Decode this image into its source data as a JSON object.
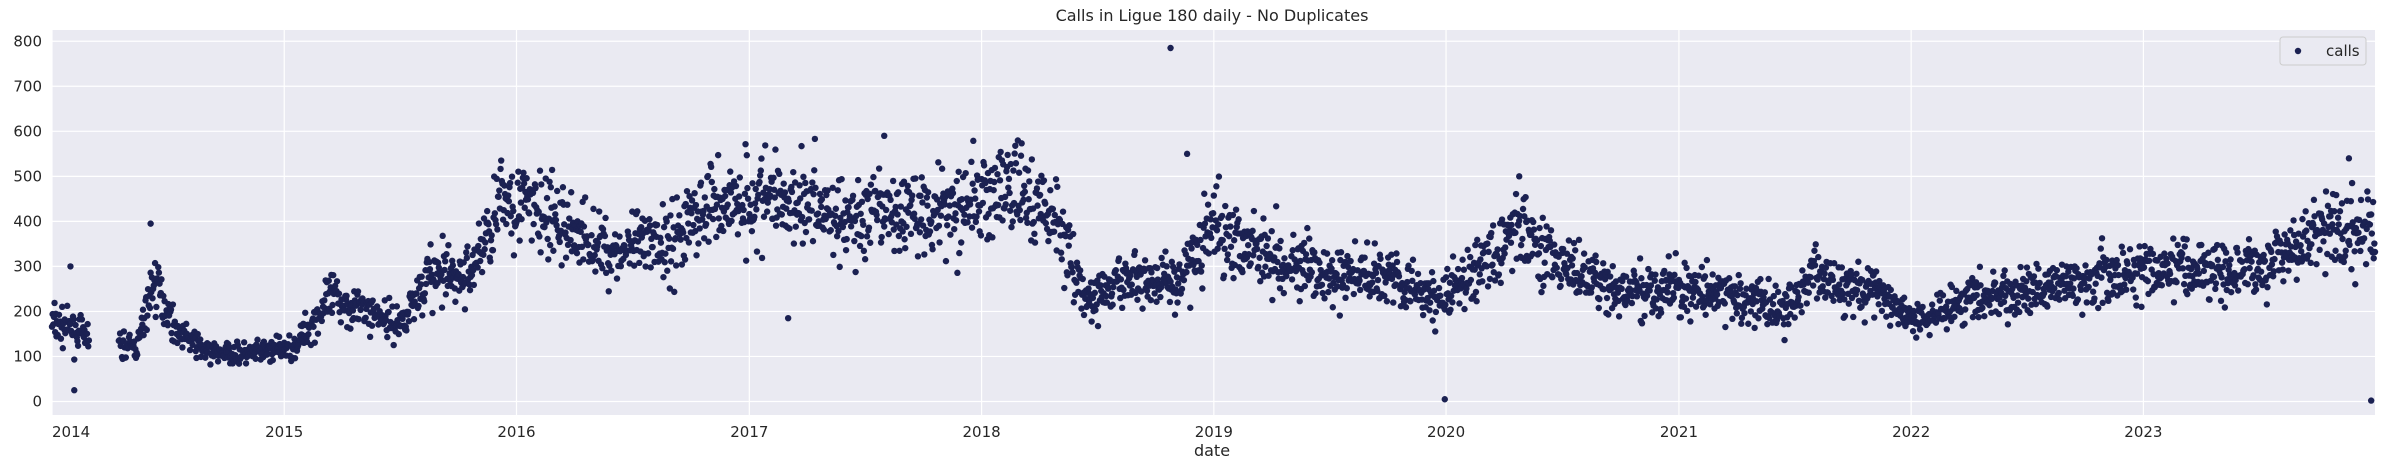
{
  "chart_data": {
    "type": "scatter",
    "title": "Calls in Ligue 180 daily - No Duplicates",
    "xlabel": "date",
    "ylabel": "",
    "x_range": [
      "2014-01-01",
      "2023-12-31"
    ],
    "ylim": [
      -30,
      825
    ],
    "x_tick_labels": [
      "2014",
      "2015",
      "2016",
      "2017",
      "2018",
      "2019",
      "2020",
      "2021",
      "2022",
      "2023"
    ],
    "y_ticks": [
      0,
      100,
      200,
      300,
      400,
      500,
      600,
      700,
      800
    ],
    "grid": true,
    "legend_position": "top-right",
    "marker_color": "#1b2152",
    "background_color": "#eaeaf2",
    "series": [
      {
        "name": "calls",
        "trend_anchors": [
          [
            "2014-01-01",
            175
          ],
          [
            "2014-02-01",
            160
          ],
          [
            "2014-03-15",
            130
          ],
          [
            "2014-05-15",
            120
          ],
          [
            "2014-06-10",
            270
          ],
          [
            "2014-07-15",
            160
          ],
          [
            "2014-09-01",
            110
          ],
          [
            "2014-11-01",
            105
          ],
          [
            "2015-01-15",
            120
          ],
          [
            "2015-03-15",
            230
          ],
          [
            "2015-05-15",
            200
          ],
          [
            "2015-07-01",
            170
          ],
          [
            "2015-08-15",
            280
          ],
          [
            "2015-10-15",
            275
          ],
          [
            "2015-12-15",
            460
          ],
          [
            "2016-03-01",
            400
          ],
          [
            "2016-06-01",
            330
          ],
          [
            "2016-09-01",
            360
          ],
          [
            "2016-11-01",
            440
          ],
          [
            "2017-01-01",
            450
          ],
          [
            "2017-04-01",
            450
          ],
          [
            "2017-06-01",
            400
          ],
          [
            "2017-09-01",
            420
          ],
          [
            "2017-12-01",
            440
          ],
          [
            "2018-03-01",
            470
          ],
          [
            "2018-05-01",
            400
          ],
          [
            "2018-06-15",
            220
          ],
          [
            "2018-09-01",
            280
          ],
          [
            "2018-11-01",
            260
          ],
          [
            "2019-01-01",
            390
          ],
          [
            "2019-04-01",
            330
          ],
          [
            "2019-07-01",
            270
          ],
          [
            "2019-10-01",
            290
          ],
          [
            "2019-12-15",
            220
          ],
          [
            "2020-02-01",
            270
          ],
          [
            "2020-05-01",
            390
          ],
          [
            "2020-07-01",
            300
          ],
          [
            "2020-10-01",
            240
          ],
          [
            "2021-01-01",
            250
          ],
          [
            "2021-04-01",
            230
          ],
          [
            "2021-06-15",
            200
          ],
          [
            "2021-08-01",
            280
          ],
          [
            "2021-11-01",
            250
          ],
          [
            "2022-01-01",
            180
          ],
          [
            "2022-04-01",
            230
          ],
          [
            "2022-07-01",
            240
          ],
          [
            "2022-10-01",
            270
          ],
          [
            "2023-01-01",
            290
          ],
          [
            "2023-04-01",
            300
          ],
          [
            "2023-07-01",
            300
          ],
          [
            "2023-10-01",
            370
          ],
          [
            "2023-12-31",
            380
          ]
        ],
        "gaps": [
          [
            "2014-03-01",
            "2014-04-15"
          ]
        ],
        "outliers": [
          [
            "2014-02-05",
            25
          ],
          [
            "2014-01-30",
            300
          ],
          [
            "2014-06-05",
            395
          ],
          [
            "2017-03-03",
            185
          ],
          [
            "2017-08-01",
            590
          ],
          [
            "2018-10-25",
            785
          ],
          [
            "2018-11-20",
            550
          ],
          [
            "2019-12-30",
            5
          ],
          [
            "2020-04-25",
            500
          ],
          [
            "2023-12-25",
            2
          ],
          [
            "2023-11-20",
            540
          ]
        ]
      }
    ]
  }
}
